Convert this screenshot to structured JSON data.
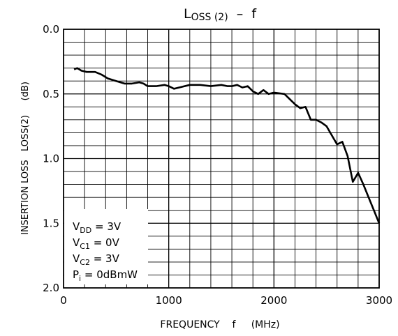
{
  "chart_data": {
    "type": "line",
    "title": {
      "main": "L",
      "sub": "OSS (2)",
      "suffix": "  –  f"
    },
    "xlabel": "FREQUENCY    f     (MHz)",
    "ylabel": "INSERTION LOSS   LOSS(2)     (dB)",
    "xlim": [
      0,
      3000
    ],
    "ylim": [
      0.0,
      2.0
    ],
    "y_inverted": true,
    "grid": true,
    "x_ticks": [
      0,
      1000,
      2000,
      3000
    ],
    "x_tick_labels": [
      "0",
      "1000",
      "2000",
      "3000"
    ],
    "y_ticks": [
      0.0,
      0.5,
      1.0,
      1.5,
      2.0
    ],
    "y_tick_labels": [
      "0.0",
      "0.5",
      "1.0",
      "1.5",
      "2.0"
    ],
    "conditions": [
      {
        "main": "V",
        "sub": "DD",
        "value": " = 3V"
      },
      {
        "main": "V",
        "sub": "C1",
        "value": " = 0V"
      },
      {
        "main": "V",
        "sub": "C2",
        "value": " = 3V"
      },
      {
        "main": "P",
        "sub": "i",
        "value": " = 0dBmW"
      }
    ],
    "series": [
      {
        "x": [
          100,
          130,
          170,
          220,
          300,
          360,
          420,
          500,
          580,
          650,
          720,
          760,
          800,
          880,
          960,
          1000,
          1050,
          1100,
          1200,
          1300,
          1400,
          1500,
          1560,
          1600,
          1650,
          1700,
          1750,
          1800,
          1850,
          1900,
          1950,
          2000,
          2100,
          2150,
          2200,
          2250,
          2300,
          2350,
          2400,
          2450,
          2500,
          2550,
          2600,
          2650,
          2700,
          2750,
          2800,
          2850,
          2900,
          2950,
          3000
        ],
        "y": [
          0.31,
          0.3,
          0.32,
          0.33,
          0.33,
          0.35,
          0.38,
          0.4,
          0.42,
          0.42,
          0.41,
          0.42,
          0.44,
          0.44,
          0.43,
          0.44,
          0.46,
          0.45,
          0.43,
          0.43,
          0.44,
          0.43,
          0.44,
          0.44,
          0.43,
          0.45,
          0.44,
          0.48,
          0.5,
          0.47,
          0.5,
          0.49,
          0.5,
          0.54,
          0.58,
          0.61,
          0.6,
          0.7,
          0.7,
          0.72,
          0.75,
          0.82,
          0.89,
          0.87,
          0.98,
          1.18,
          1.11,
          1.2,
          1.3,
          1.4,
          1.5
        ]
      }
    ]
  }
}
